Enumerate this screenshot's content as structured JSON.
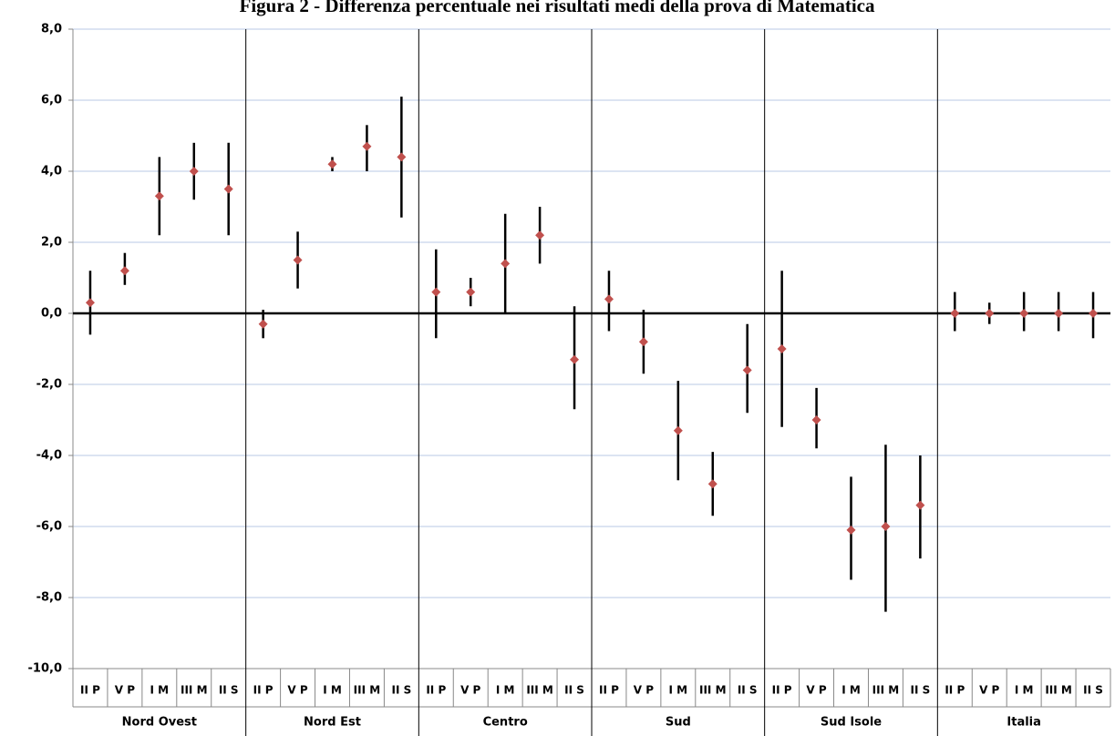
{
  "chart_data": {
    "type": "errorbar",
    "title": "Figura 2 - Differenza percentuale nei risultati medi della prova di Matematica",
    "categories": [
      "II P",
      "V P",
      "I M",
      "III M",
      "II S",
      "II P",
      "V P",
      "I M",
      "III M",
      "II S",
      "II P",
      "V P",
      "I M",
      "III M",
      "II S",
      "II P",
      "V P",
      "I M",
      "III M",
      "II S",
      "II P",
      "V P",
      "I M",
      "III M",
      "II S",
      "II P",
      "V P",
      "I M",
      "III M",
      "II S"
    ],
    "groups": [
      "Nord Ovest",
      "Nord Est",
      "Centro",
      "Sud",
      "Sud Isole",
      "Italia"
    ],
    "values": [
      0.3,
      1.2,
      3.3,
      4.0,
      3.5,
      -0.3,
      1.5,
      4.2,
      4.7,
      4.4,
      0.6,
      0.6,
      1.4,
      2.2,
      -1.3,
      0.4,
      -0.8,
      -3.3,
      -4.8,
      -1.6,
      -1.0,
      -3.0,
      -6.1,
      -6.0,
      -5.4,
      0,
      0,
      0,
      0,
      0
    ],
    "low": [
      -0.6,
      0.8,
      2.2,
      3.2,
      2.2,
      -0.7,
      0.7,
      4.0,
      4.0,
      2.7,
      -0.7,
      0.2,
      0.0,
      1.4,
      -2.7,
      -0.5,
      -1.7,
      -4.7,
      -5.7,
      -2.8,
      -3.2,
      -3.8,
      -7.5,
      -8.4,
      -6.9,
      -0.5,
      -0.3,
      -0.5,
      -0.5,
      -0.7
    ],
    "high": [
      1.2,
      1.7,
      4.4,
      4.8,
      4.8,
      0.1,
      2.3,
      4.4,
      5.3,
      6.1,
      1.8,
      1.0,
      2.8,
      3.0,
      0.2,
      1.2,
      0.1,
      -1.9,
      -3.9,
      -0.3,
      1.2,
      -2.1,
      -4.6,
      -3.7,
      -4.0,
      0.6,
      0.3,
      0.6,
      0.6,
      0.6
    ],
    "color": "#c0504d",
    "bar_color": "#000000",
    "grid_color": "#b9c9e6",
    "ylim": [
      -10,
      8
    ],
    "yticks": [
      {
        "value": -10,
        "label": "-10,0"
      },
      {
        "value": -8,
        "label": "-8,0"
      },
      {
        "value": -6,
        "label": "-6,0"
      },
      {
        "value": -4,
        "label": "-4,0"
      },
      {
        "value": -2,
        "label": "-2,0"
      },
      {
        "value": 0,
        "label": "0,0"
      },
      {
        "value": 2,
        "label": "2,0"
      },
      {
        "value": 4,
        "label": "4,0"
      },
      {
        "value": 6,
        "label": "6,0"
      },
      {
        "value": 8,
        "label": "8,0"
      }
    ],
    "grid": true
  }
}
